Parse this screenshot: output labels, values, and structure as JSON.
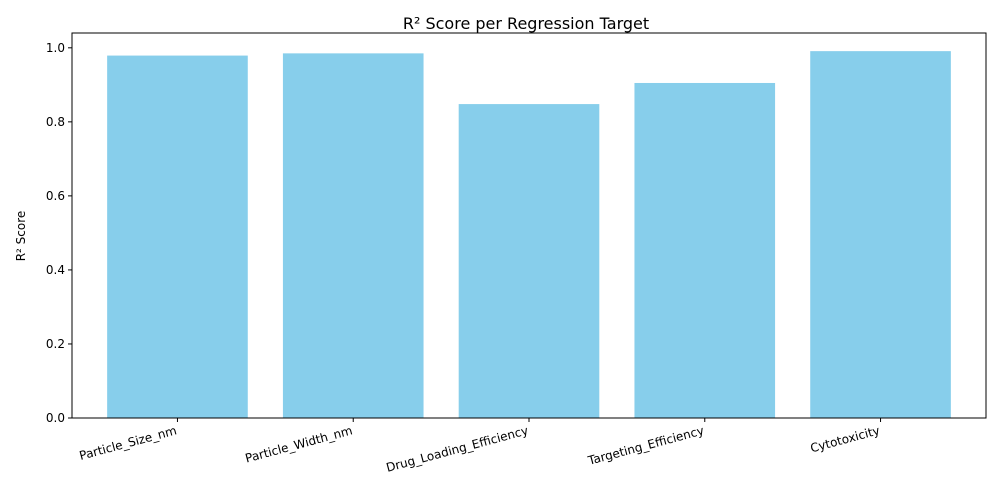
{
  "chart_data": {
    "type": "bar",
    "title": "R² Score per Regression Target",
    "xlabel": "",
    "ylabel": "R² Score",
    "categories": [
      "Particle_Size_nm",
      "Particle_Width_nm",
      "Drug_Loading_Efficiency",
      "Targeting_Efficiency",
      "Cytotoxicity"
    ],
    "values": [
      0.979,
      0.985,
      0.848,
      0.905,
      0.991
    ],
    "ylim": [
      0,
      1.04
    ],
    "yticks": [
      "0.0",
      "0.2",
      "0.4",
      "0.6",
      "0.8",
      "1.0"
    ],
    "bar_color": "#87ceeb",
    "grid": false,
    "legend": "none"
  }
}
